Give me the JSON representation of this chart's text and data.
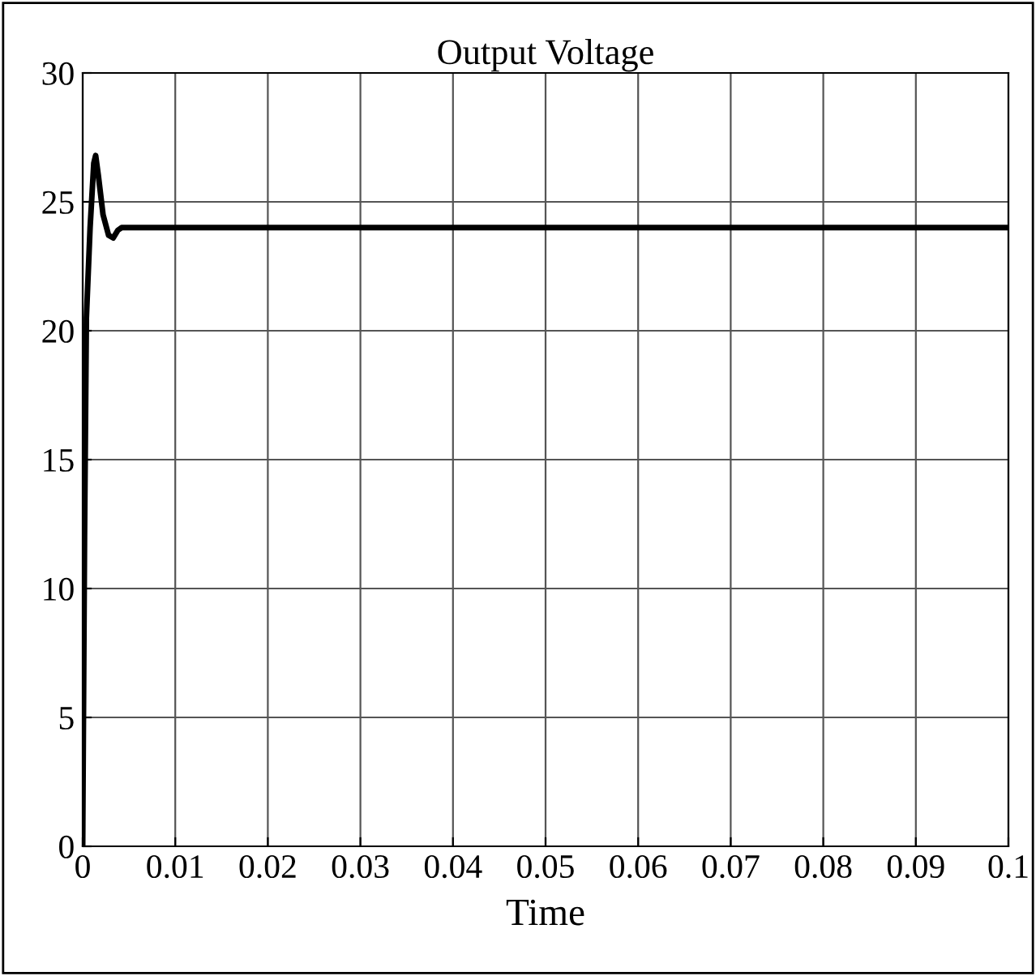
{
  "chart_data": {
    "type": "line",
    "title": "Output Voltage",
    "xlabel": "Time",
    "x": [
      0,
      0.0002,
      0.0004,
      0.0008,
      0.0012,
      0.0014,
      0.0017,
      0.0022,
      0.0028,
      0.0033,
      0.0038,
      0.0042,
      0.01,
      0.03,
      0.05,
      0.07,
      0.1
    ],
    "series": [
      {
        "color": "#000000",
        "values": [
          0,
          12,
          20.5,
          24,
          26.5,
          26.8,
          26,
          24.5,
          23.7,
          23.6,
          23.9,
          24,
          24,
          24,
          24,
          24,
          24
        ]
      }
    ],
    "xlim": [
      0,
      0.1
    ],
    "xticks": [
      0,
      0.01,
      0.02,
      0.03,
      0.04,
      0.05,
      0.06,
      0.07,
      0.08,
      0.09,
      0.1
    ],
    "ylim": [
      0,
      30
    ],
    "yticks": [
      0,
      5,
      10,
      15,
      20,
      25,
      30
    ],
    "grid": true,
    "legend": false
  }
}
